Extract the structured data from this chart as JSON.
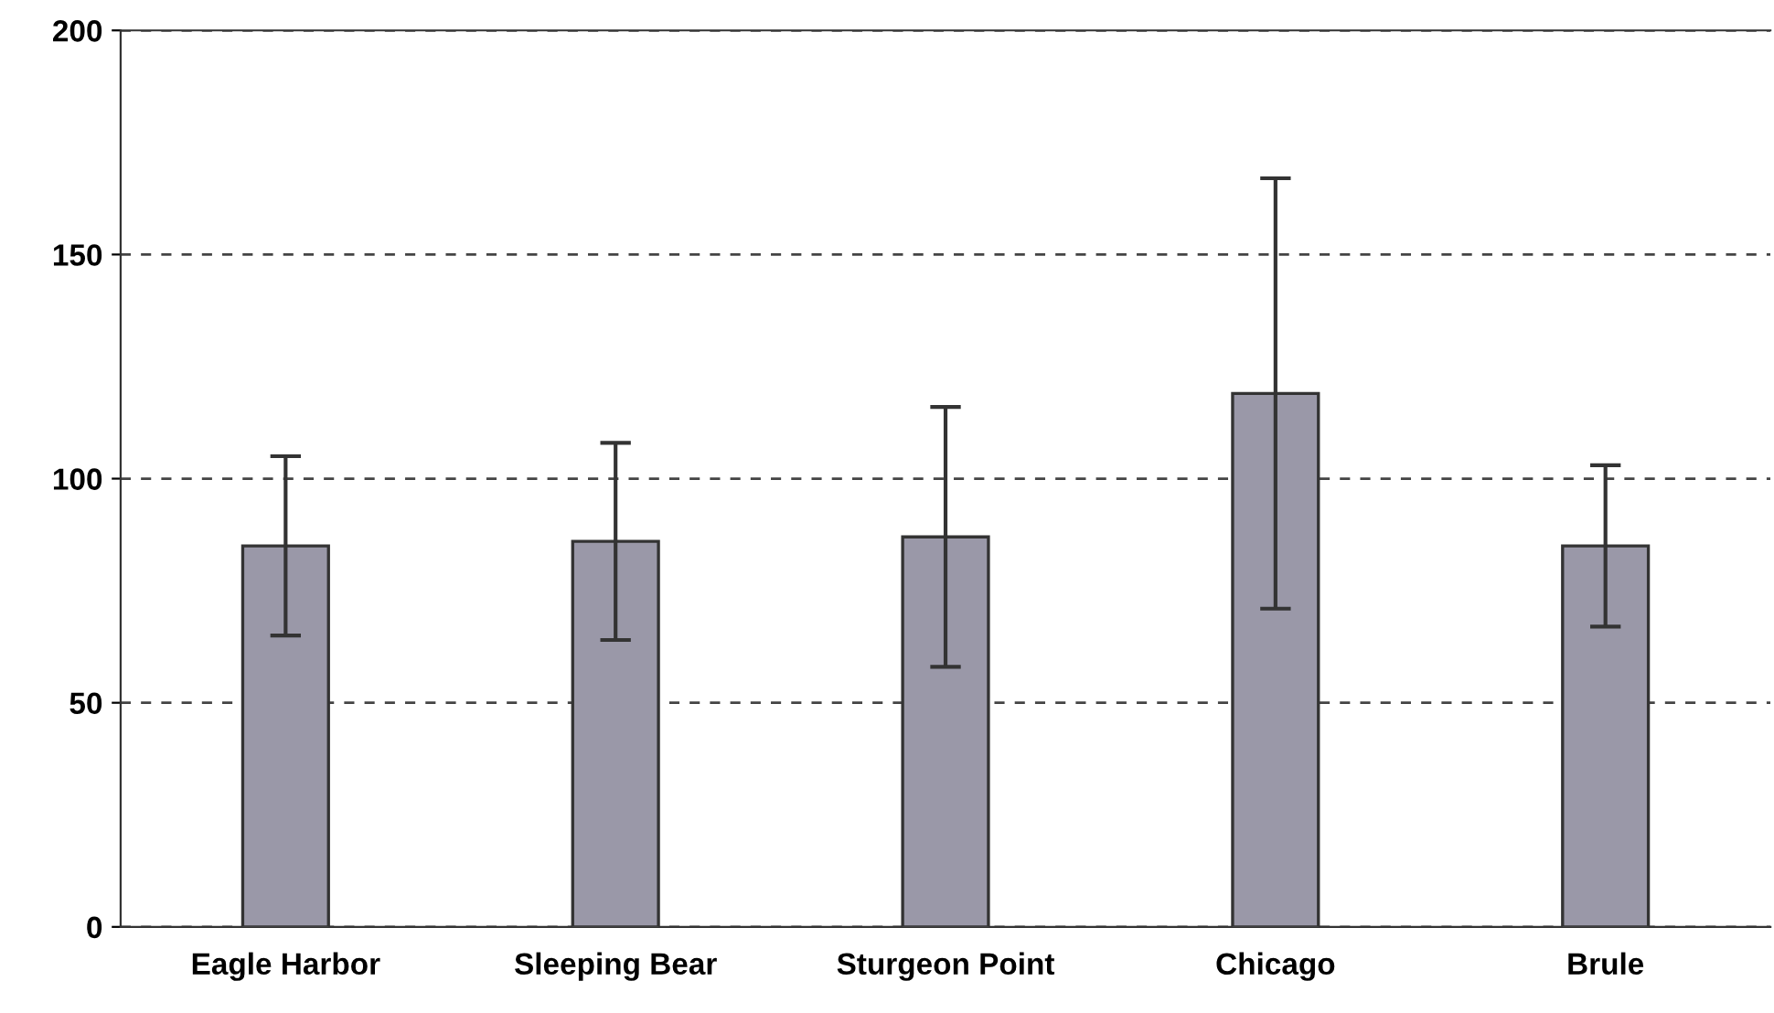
{
  "chart_data": {
    "type": "bar",
    "categories": [
      "Eagle Harbor",
      "Sleeping Bear",
      "Sturgeon Point",
      "Chicago",
      "Brule"
    ],
    "values": [
      85,
      86,
      87,
      119,
      85
    ],
    "errors": [
      20,
      22,
      29,
      48,
      18
    ],
    "color": "#9a98a8",
    "ylim": [
      0,
      200
    ],
    "yticks": [
      0,
      50,
      100,
      150,
      200
    ],
    "grid": "y"
  }
}
